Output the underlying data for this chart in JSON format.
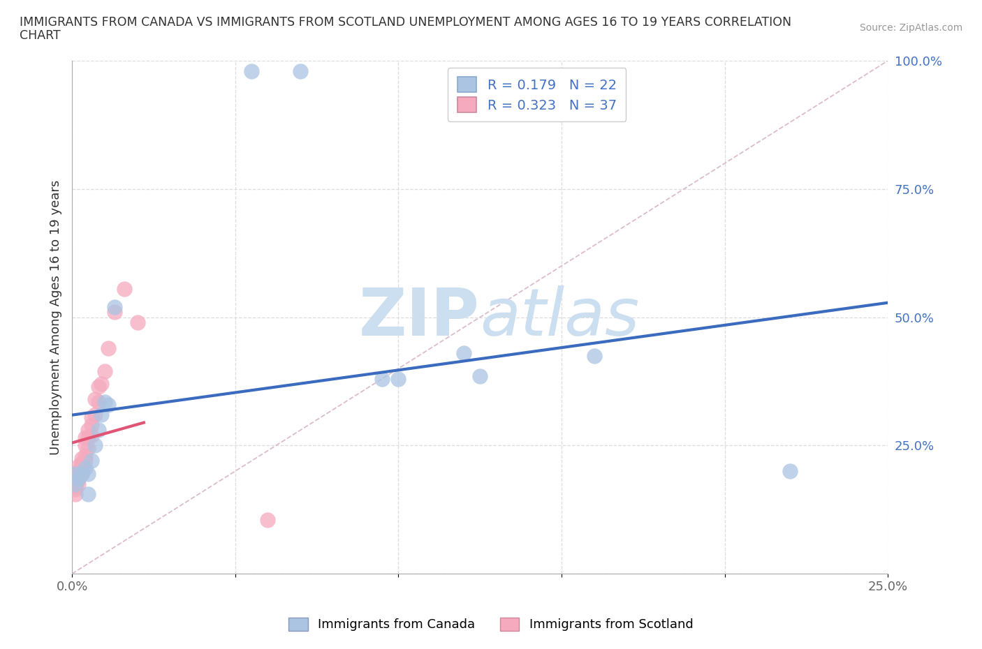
{
  "title": "IMMIGRANTS FROM CANADA VS IMMIGRANTS FROM SCOTLAND UNEMPLOYMENT AMONG AGES 16 TO 19 YEARS CORRELATION\nCHART",
  "source": "Source: ZipAtlas.com",
  "ylabel": "Unemployment Among Ages 16 to 19 years",
  "xlim": [
    0,
    0.25
  ],
  "ylim": [
    0,
    1.0
  ],
  "canada_R": 0.179,
  "canada_N": 22,
  "scotland_R": 0.323,
  "scotland_N": 37,
  "canada_color": "#aac4e2",
  "scotland_color": "#f5aabe",
  "canada_line_color": "#3a6bbf",
  "scotland_line_color": "#e05575",
  "watermark_color": "#ccdff0",
  "canada_x": [
    0.001,
    0.001,
    0.002,
    0.003,
    0.004,
    0.005,
    0.006,
    0.007,
    0.008,
    0.009,
    0.01,
    0.011,
    0.013,
    0.055,
    0.07,
    0.095,
    0.1,
    0.16,
    0.22,
    0.12,
    0.125,
    0.005
  ],
  "canada_y": [
    0.195,
    0.175,
    0.185,
    0.195,
    0.205,
    0.195,
    0.22,
    0.25,
    0.28,
    0.31,
    0.335,
    0.33,
    0.52,
    0.98,
    0.98,
    0.38,
    0.38,
    0.425,
    0.2,
    0.43,
    0.385,
    0.155
  ],
  "scotland_x": [
    0.001,
    0.001,
    0.001,
    0.001,
    0.001,
    0.001,
    0.002,
    0.002,
    0.002,
    0.002,
    0.002,
    0.003,
    0.003,
    0.003,
    0.003,
    0.003,
    0.004,
    0.004,
    0.004,
    0.004,
    0.005,
    0.005,
    0.005,
    0.006,
    0.006,
    0.006,
    0.007,
    0.007,
    0.008,
    0.008,
    0.009,
    0.01,
    0.011,
    0.013,
    0.016,
    0.02,
    0.06
  ],
  "scotland_y": [
    0.155,
    0.175,
    0.165,
    0.18,
    0.17,
    0.195,
    0.195,
    0.185,
    0.2,
    0.175,
    0.21,
    0.2,
    0.215,
    0.225,
    0.195,
    0.215,
    0.22,
    0.23,
    0.25,
    0.265,
    0.245,
    0.265,
    0.28,
    0.27,
    0.29,
    0.305,
    0.31,
    0.34,
    0.335,
    0.365,
    0.37,
    0.395,
    0.44,
    0.51,
    0.555,
    0.49,
    0.105
  ],
  "diag_line_color": "#ddbbcc",
  "grid_color": "#dddddd",
  "tick_label_color": "#4472c4",
  "yticklabels_right": true
}
